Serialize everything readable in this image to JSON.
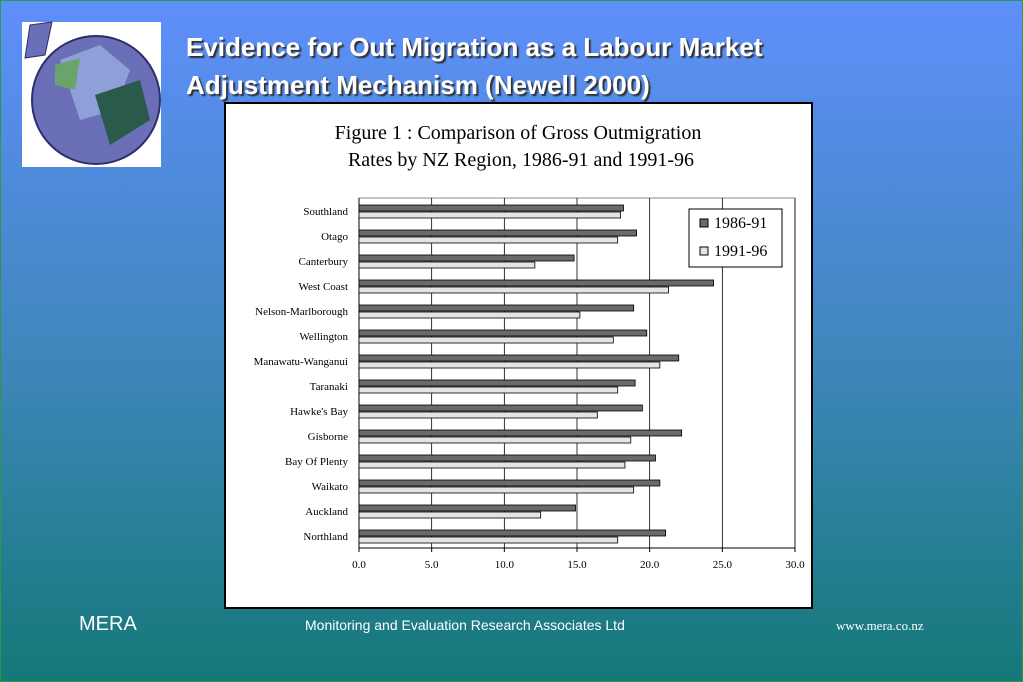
{
  "slide": {
    "title_lines": [
      "Evidence for Out Migration as a Labour Market",
      "Adjustment Mechanism (Newell 2000)"
    ],
    "footer_left": "MERA",
    "footer_center": "Monitoring and Evaluation Research Associates Ltd",
    "footer_right": "www.mera.co.nz"
  },
  "chart_data": {
    "type": "hbar",
    "title_lines": [
      "Figure 1 : Comparison of Gross Outmigration",
      "Rates by NZ Region, 1986-91 and 1991-96"
    ],
    "categories": [
      "Southland",
      "Otago",
      "Canterbury",
      "West Coast",
      "Nelson-Marlborough",
      "Wellington",
      "Manawatu-Wanganui",
      "Taranaki",
      "Hawke's Bay",
      "Gisborne",
      "Bay Of Plenty",
      "Waikato",
      "Auckland",
      "Northland"
    ],
    "series": [
      {
        "name": "1986-91",
        "color": "#6a6a6a",
        "values": [
          18.2,
          19.1,
          14.8,
          24.4,
          18.9,
          19.8,
          22.0,
          19.0,
          19.5,
          22.2,
          20.4,
          20.7,
          14.9,
          21.1
        ]
      },
      {
        "name": "1991-96",
        "color": "#e4e4e4",
        "values": [
          18.0,
          17.8,
          12.1,
          21.3,
          15.2,
          17.5,
          20.7,
          17.8,
          16.4,
          18.7,
          18.3,
          18.9,
          12.5,
          17.8
        ]
      }
    ],
    "xlim": [
      0,
      30
    ],
    "xticks": [
      {
        "value": 0,
        "label": "0.0"
      },
      {
        "value": 5,
        "label": "5.0"
      },
      {
        "value": 10,
        "label": "10.0"
      },
      {
        "value": 15,
        "label": "15.0"
      },
      {
        "value": 20,
        "label": "20.0"
      },
      {
        "value": 25,
        "label": "25.0"
      },
      {
        "value": 30,
        "label": "30.0"
      }
    ],
    "grid": true,
    "legend": "upper right"
  }
}
